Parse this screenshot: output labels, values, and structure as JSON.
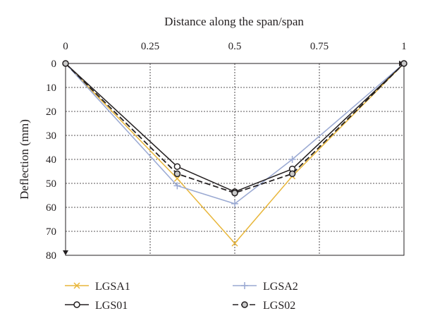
{
  "chart_data": {
    "type": "line",
    "xlabel": "Distance along the span/span",
    "ylabel": "Deflection (mm)",
    "xlim": [
      0,
      1
    ],
    "ylim": [
      0,
      80
    ],
    "y_inverted": true,
    "x_axis_position": "top",
    "x_ticks": [
      "0",
      "0.25",
      "0.5",
      "0.75",
      "1"
    ],
    "y_ticks": [
      "0",
      "10",
      "20",
      "30",
      "40",
      "50",
      "60",
      "70",
      "80"
    ],
    "grid": "dashed",
    "legend_position": "bottom",
    "series": [
      {
        "name": "LGSA1",
        "x": [
          0,
          0.33,
          0.5,
          0.67,
          1
        ],
        "y": [
          0,
          48,
          75,
          47,
          0
        ],
        "color": "#e8b63a",
        "marker": "x",
        "dashed": false
      },
      {
        "name": "LGSA2",
        "x": [
          0,
          0.33,
          0.5,
          0.67,
          1
        ],
        "y": [
          0,
          51,
          58.5,
          40,
          0
        ],
        "color": "#9aa9d2",
        "marker": "plus",
        "dashed": false
      },
      {
        "name": "LGS01",
        "x": [
          0,
          0.33,
          0.5,
          0.67,
          1
        ],
        "y": [
          0,
          43,
          53.5,
          44,
          0
        ],
        "color": "#231f20",
        "marker": "circle",
        "dashed": false
      },
      {
        "name": "LGS02",
        "x": [
          0,
          0.33,
          0.5,
          0.67,
          1
        ],
        "y": [
          0,
          46,
          54,
          46,
          0
        ],
        "color": "#231f20",
        "marker": "circle-gray",
        "dashed": true
      }
    ]
  }
}
